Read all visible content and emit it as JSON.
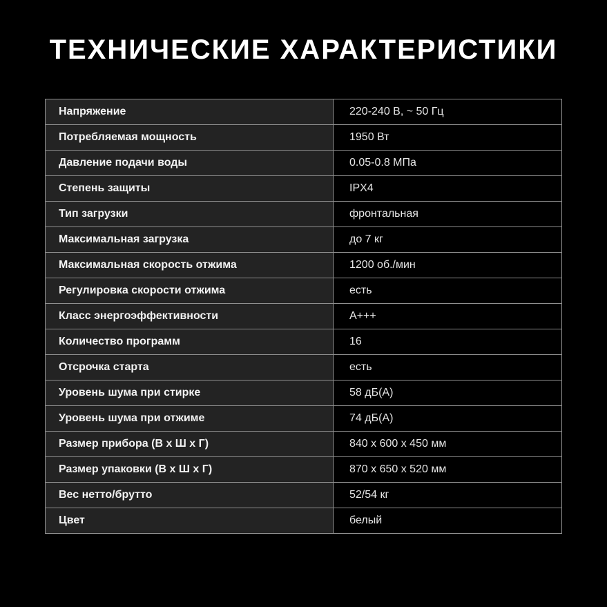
{
  "title": "ТЕХНИЧЕСКИЕ ХАРАКТЕРИСТИКИ",
  "specs": [
    {
      "label": "Напряжение",
      "value": "220-240 В, ~ 50 Гц"
    },
    {
      "label": "Потребляемая мощность",
      "value": "1950 Вт"
    },
    {
      "label": "Давление подачи воды",
      "value": "0.05-0.8 МПа"
    },
    {
      "label": "Степень защиты",
      "value": "IPX4"
    },
    {
      "label": "Тип загрузки",
      "value": "фронтальная"
    },
    {
      "label": "Максимальная загрузка",
      "value": "до 7 кг"
    },
    {
      "label": "Максимальная скорость отжима",
      "value": "1200 об./мин"
    },
    {
      "label": "Регулировка скорости отжима",
      "value": "есть"
    },
    {
      "label": "Класс энергоэффективности",
      "value": "A+++"
    },
    {
      "label": "Количество программ",
      "value": "16"
    },
    {
      "label": "Отсрочка старта",
      "value": "есть"
    },
    {
      "label": "Уровень шума при стирке",
      "value": "58 дБ(А)"
    },
    {
      "label": "Уровень шума при отжиме",
      "value": "74 дБ(А)"
    },
    {
      "label": "Размер прибора (В х Ш х Г)",
      "value": "840 x 600 x 450 мм"
    },
    {
      "label": "Размер упаковки (В х Ш х Г)",
      "value": "870 x 650 x 520 мм"
    },
    {
      "label": "Вес нетто/брутто",
      "value": "52/54 кг"
    },
    {
      "label": "Цвет",
      "value": "белый"
    }
  ]
}
